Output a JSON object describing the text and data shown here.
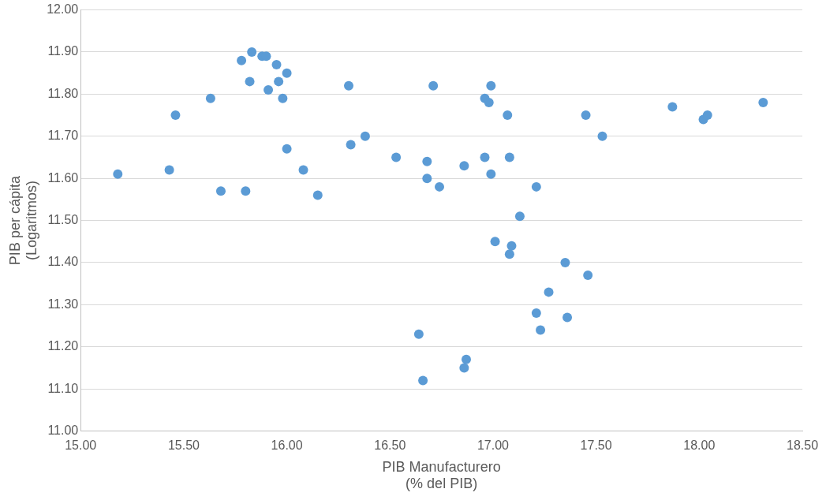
{
  "chart_data": {
    "type": "scatter",
    "xlabel": "PIB Manufacturero\n(% del PIB)",
    "ylabel": "PIB per cápita\n(Logaritmos)",
    "marker": "circle",
    "grid": "y",
    "legend": false,
    "xlim": [
      15,
      18.5
    ],
    "xticks": [
      {
        "value": 15,
        "label": "15.00"
      },
      {
        "value": 15.5,
        "label": "15.50"
      },
      {
        "value": 16,
        "label": "16.00"
      },
      {
        "value": 16.5,
        "label": "16.50"
      },
      {
        "value": 17,
        "label": "17.00"
      },
      {
        "value": 17.5,
        "label": "17.50"
      },
      {
        "value": 18,
        "label": "18.00"
      },
      {
        "value": 18.5,
        "label": "18.50"
      }
    ],
    "ylim": [
      11,
      12
    ],
    "yticks": [
      {
        "value": 11,
        "label": "11.00"
      },
      {
        "value": 11.1,
        "label": "11.10"
      },
      {
        "value": 11.2,
        "label": "11.20"
      },
      {
        "value": 11.3,
        "label": "11.30"
      },
      {
        "value": 11.4,
        "label": "11.40"
      },
      {
        "value": 11.5,
        "label": "11.50"
      },
      {
        "value": 11.6,
        "label": "11.60"
      },
      {
        "value": 11.7,
        "label": "11.70"
      },
      {
        "value": 11.8,
        "label": "11.80"
      },
      {
        "value": 11.9,
        "label": "11.90"
      },
      {
        "value": 12,
        "label": "12.00"
      }
    ],
    "series": [
      {
        "color": "#5b9bd5",
        "x": [
          15.18,
          15.43,
          15.46,
          15.63,
          15.68,
          15.78,
          15.83,
          15.8,
          15.82,
          15.88,
          15.9,
          15.91,
          15.95,
          15.96,
          15.98,
          16,
          16,
          16.08,
          16.15,
          16.3,
          16.31,
          16.38,
          16.53,
          16.64,
          16.68,
          16.68,
          16.66,
          16.71,
          16.74,
          16.86,
          16.86,
          16.87,
          16.96,
          16.96,
          16.98,
          16.99,
          16.99,
          17.01,
          17.08,
          17.09,
          17.07,
          17.08,
          17.13,
          17.21,
          17.21,
          17.23,
          17.27,
          17.35,
          17.36,
          17.45,
          17.46,
          17.53,
          17.87,
          18.02,
          18.04,
          18.31
        ],
        "values": [
          11.61,
          11.62,
          11.75,
          11.79,
          11.57,
          11.88,
          11.9,
          11.57,
          11.83,
          11.89,
          11.89,
          11.81,
          11.87,
          11.83,
          11.79,
          11.85,
          11.67,
          11.62,
          11.56,
          11.82,
          11.68,
          11.7,
          11.65,
          11.23,
          11.64,
          11.6,
          11.12,
          11.82,
          11.58,
          11.63,
          11.15,
          11.17,
          11.65,
          11.79,
          11.78,
          11.82,
          11.61,
          11.45,
          11.42,
          11.44,
          11.75,
          11.65,
          11.51,
          11.58,
          11.28,
          11.24,
          11.33,
          11.4,
          11.27,
          11.75,
          11.37,
          11.7,
          11.77,
          11.74,
          11.75,
          11.78
        ]
      }
    ]
  }
}
